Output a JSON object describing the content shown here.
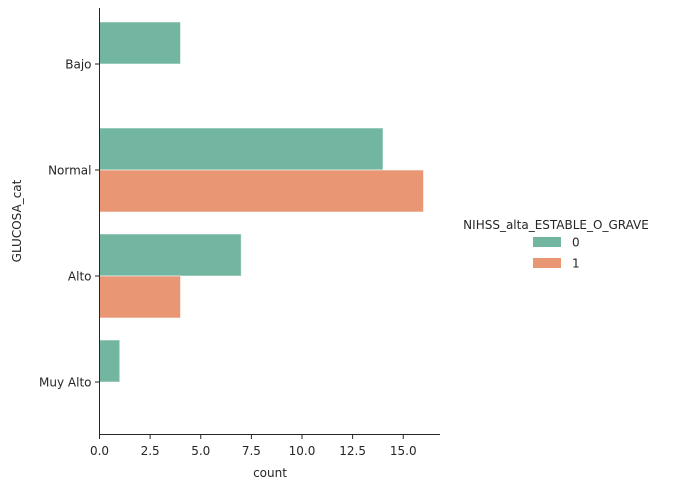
{
  "chart_data": {
    "type": "bar",
    "orientation": "horizontal",
    "categories": [
      "Bajo",
      "Normal",
      "Alto",
      "Muy Alto"
    ],
    "series": [
      {
        "name": "0",
        "values": [
          4,
          14,
          7,
          1
        ]
      },
      {
        "name": "1",
        "values": [
          0,
          16,
          4,
          0
        ]
      }
    ],
    "xlabel": "count",
    "ylabel": "GLUCOSA_cat",
    "xlim": [
      0,
      16.8
    ],
    "xticks": [
      "0.0",
      "2.5",
      "5.0",
      "7.5",
      "10.0",
      "12.5",
      "15.0"
    ],
    "grid": false,
    "legend": {
      "title": "NIHSS_alta_ESTABLE_O_GRAVE",
      "placement": "right"
    },
    "colors": [
      "#72b6a1",
      "#e99675"
    ]
  }
}
